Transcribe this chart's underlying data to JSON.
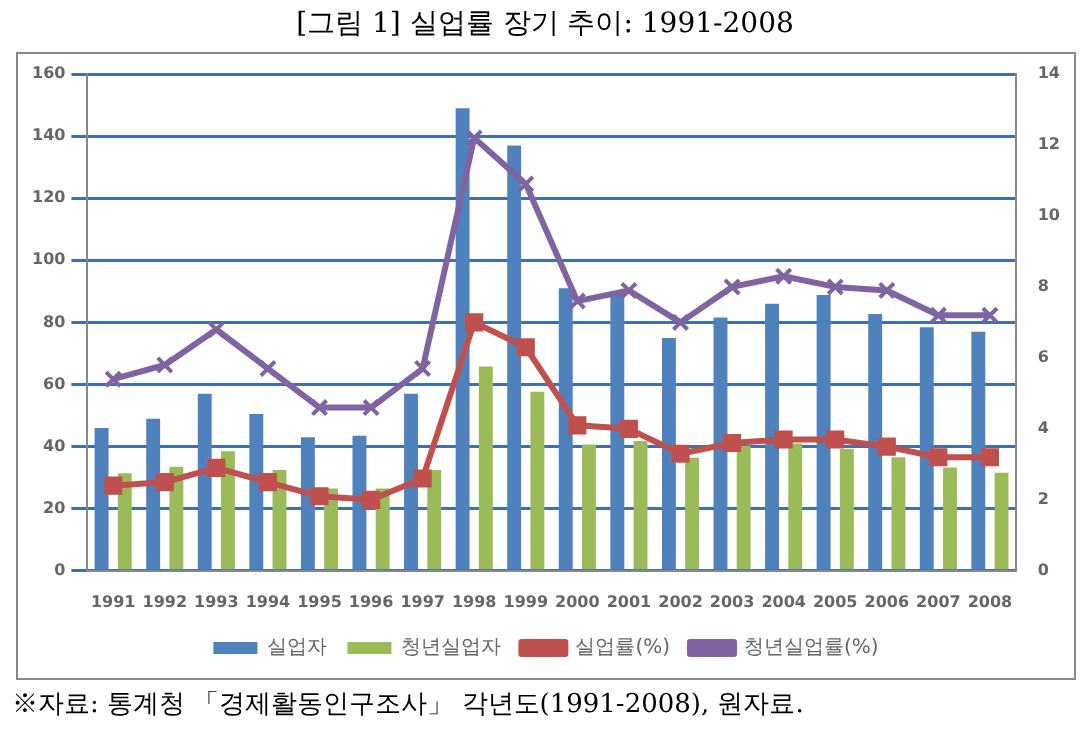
{
  "chart_data": {
    "type": "bar",
    "title": "[그림 1] 실업률 장기 추이: 1991-2008",
    "categories": [
      "1991",
      "1992",
      "1993",
      "1994",
      "1995",
      "1996",
      "1997",
      "1998",
      "1999",
      "2000",
      "2001",
      "2002",
      "2003",
      "2004",
      "2005",
      "2006",
      "2007",
      "2008"
    ],
    "series": [
      {
        "name": "실업자",
        "color": "#4f81bd",
        "values": [
          46,
          49,
          57,
          50.5,
          43,
          43.5,
          57,
          149,
          137,
          91,
          90,
          75,
          81.6,
          86,
          88.8,
          82.7,
          78.4,
          77
        ]
      },
      {
        "name": "청년실업자",
        "color": "#9bbb59",
        "values": [
          31.4,
          33.5,
          38.5,
          32.5,
          26.5,
          26.5,
          32.5,
          65.8,
          57.7,
          40.7,
          41.8,
          36.4,
          40.3,
          41,
          39.2,
          36.6,
          33.3,
          31.6
        ]
      },
      {
        "name": "실업률(%)",
        "type": "line",
        "axis": "y2",
        "marker": "square",
        "color": "#c0504d",
        "values": [
          2.4,
          2.5,
          2.9,
          2.5,
          2.1,
          2.0,
          2.6,
          7.0,
          6.3,
          4.1,
          4.0,
          3.3,
          3.6,
          3.7,
          3.7,
          3.5,
          3.2,
          3.2
        ]
      },
      {
        "name": "청년실업률(%)",
        "type": "line",
        "axis": "y2",
        "marker": "cross",
        "color": "#8064a2",
        "values": [
          5.4,
          5.8,
          6.8,
          5.7,
          4.6,
          4.6,
          5.7,
          12.2,
          10.9,
          7.6,
          7.9,
          7.0,
          8.0,
          8.3,
          8.0,
          7.9,
          7.2,
          7.2
        ]
      }
    ],
    "ylim": [
      0,
      160
    ],
    "yticks": [
      0,
      20,
      40,
      60,
      80,
      100,
      120,
      140,
      160
    ],
    "y2lim": [
      0,
      14
    ],
    "y2ticks": [
      0,
      2,
      4,
      6,
      8,
      10,
      12,
      14
    ],
    "grid": "y",
    "legend": "bottom",
    "annotations": [
      "※자료: 통계청 「경제활동인구조사」 각년도(1991-2008), 원자료."
    ]
  }
}
